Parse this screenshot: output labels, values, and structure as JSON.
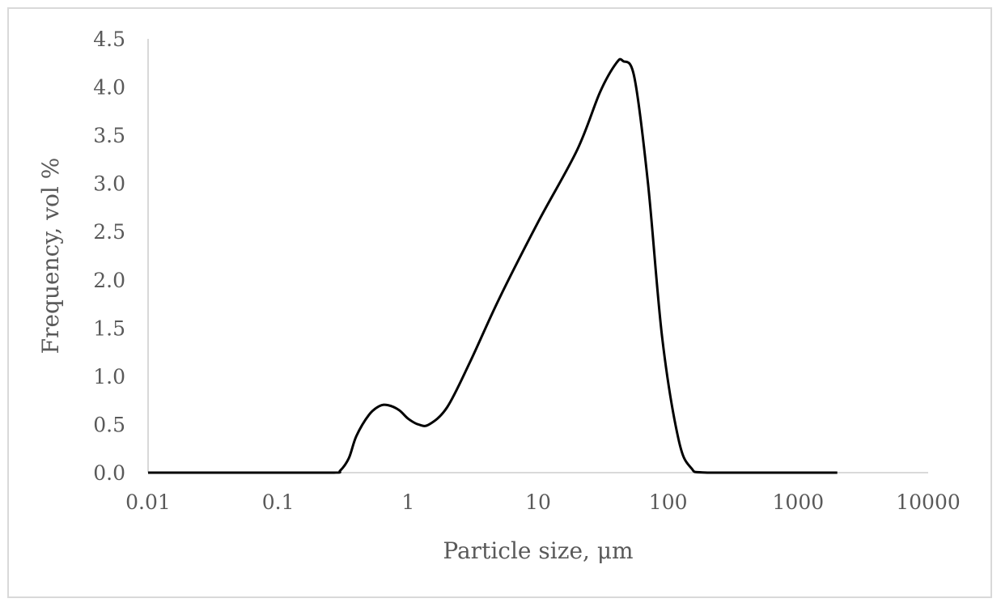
{
  "chart_data": {
    "type": "line",
    "title": "",
    "xlabel": "Particle size, μm",
    "ylabel": "Frequency, vol %",
    "x_scale": "log",
    "xlim": [
      0.01,
      10000
    ],
    "ylim": [
      0,
      4.5
    ],
    "x_ticks": [
      "0.01",
      "0.1",
      "1",
      "10",
      "100",
      "1000",
      "10000"
    ],
    "y_ticks": [
      "0.0",
      "0.5",
      "1.0",
      "1.5",
      "2.0",
      "2.5",
      "3.0",
      "3.5",
      "4.0",
      "4.5"
    ],
    "grid": false,
    "legend": "none",
    "series": [
      {
        "color": "#000000",
        "points": [
          [
            0.01,
            0.0
          ],
          [
            0.1,
            0.0
          ],
          [
            0.27,
            0.0
          ],
          [
            0.3,
            0.02
          ],
          [
            0.35,
            0.15
          ],
          [
            0.4,
            0.38
          ],
          [
            0.5,
            0.6
          ],
          [
            0.6,
            0.69
          ],
          [
            0.7,
            0.7
          ],
          [
            0.85,
            0.65
          ],
          [
            1.0,
            0.56
          ],
          [
            1.2,
            0.5
          ],
          [
            1.45,
            0.5
          ],
          [
            2.0,
            0.68
          ],
          [
            3.0,
            1.15
          ],
          [
            5.0,
            1.8
          ],
          [
            10.0,
            2.6
          ],
          [
            20.0,
            3.35
          ],
          [
            30.0,
            3.95
          ],
          [
            40.0,
            4.25
          ],
          [
            45.0,
            4.27
          ],
          [
            55.0,
            4.1
          ],
          [
            70.0,
            3.0
          ],
          [
            90.0,
            1.4
          ],
          [
            120.0,
            0.35
          ],
          [
            150.0,
            0.05
          ],
          [
            200.0,
            0.0
          ],
          [
            1000.0,
            0.0
          ],
          [
            2000.0,
            0.0
          ]
        ]
      }
    ]
  }
}
